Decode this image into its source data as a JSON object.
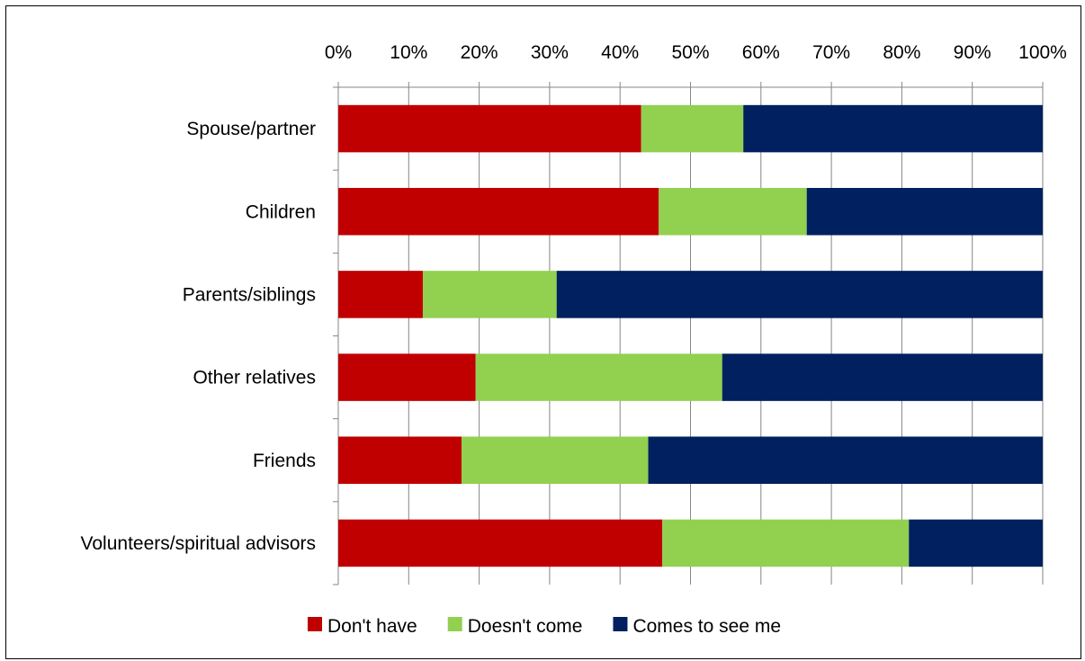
{
  "chart_data": {
    "type": "bar",
    "orientation": "horizontal",
    "stacked": true,
    "percent_stacked": true,
    "categories": [
      "Spouse/partner",
      "Children",
      "Parents/siblings",
      "Other relatives",
      "Friends",
      "Volunteers/spiritual advisors"
    ],
    "series": [
      {
        "name": "Don't have",
        "color": "#C00000",
        "values": [
          43,
          45.5,
          12,
          19.5,
          17.5,
          46
        ]
      },
      {
        "name": "Doesn't come",
        "color": "#92D050",
        "values": [
          14.5,
          21,
          19,
          35,
          26.5,
          35
        ]
      },
      {
        "name": "Comes to see me",
        "color": "#002060",
        "values": [
          42.5,
          33.5,
          69,
          45.5,
          56,
          19
        ]
      }
    ],
    "x_ticks": [
      "0%",
      "10%",
      "20%",
      "30%",
      "40%",
      "50%",
      "60%",
      "70%",
      "80%",
      "90%",
      "100%"
    ],
    "xlim": [
      0,
      100
    ],
    "title": "",
    "xlabel": "",
    "ylabel": "",
    "grid": true,
    "legend_position": "bottom",
    "axis_position": "top"
  }
}
